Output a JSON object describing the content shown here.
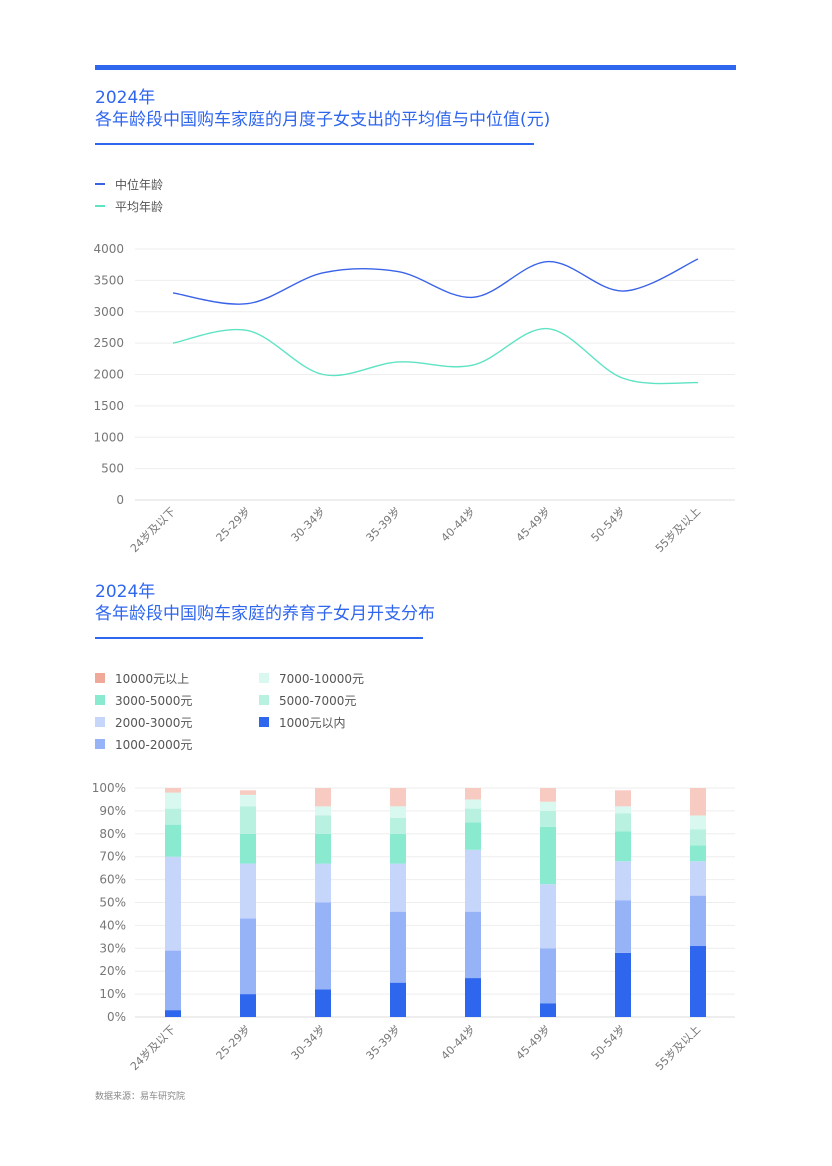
{
  "chart_data": [
    {
      "type": "line",
      "title_year": "2024年",
      "title": "各年龄段中国购车家庭的月度子女支出的平均值与中位值(元)",
      "categories": [
        "24岁及以下",
        "25-29岁",
        "30-34岁",
        "35-39岁",
        "40-44岁",
        "45-49岁",
        "50-54岁",
        "55岁及以上"
      ],
      "ylim": [
        0,
        4000
      ],
      "yticks": [
        "0",
        "500",
        "1000",
        "1500",
        "2000",
        "2500",
        "3000",
        "3500",
        "4000"
      ],
      "grid": true,
      "legend_position": "top-left",
      "series": [
        {
          "name": "中位年龄",
          "color": "#3a63e8",
          "values": [
            3300,
            3130,
            3620,
            3640,
            3230,
            3800,
            3330,
            3840
          ]
        },
        {
          "name": "平均年龄",
          "color": "#5ee3c4",
          "values": [
            2500,
            2700,
            2000,
            2200,
            2150,
            2730,
            1940,
            1870
          ]
        }
      ]
    },
    {
      "type": "bar",
      "stacked": true,
      "title_year": "2024年",
      "title": "各年龄段中国购车家庭的养育子女月开支分布",
      "categories": [
        "24岁及以下",
        "25-29岁",
        "30-34岁",
        "35-39岁",
        "40-44岁",
        "45-49岁",
        "50-54岁",
        "55岁及以上"
      ],
      "ylim": [
        0,
        100
      ],
      "yticks": [
        "0%",
        "10%",
        "20%",
        "30%",
        "40%",
        "50%",
        "60%",
        "70%",
        "80%",
        "90%",
        "100%"
      ],
      "grid": true,
      "legend_position": "top-left",
      "legend_order": [
        6,
        3,
        2,
        1,
        5,
        4,
        0
      ],
      "series": [
        {
          "name": "1000元以内",
          "color": "#2f66ee",
          "values": [
            3,
            10,
            12,
            15,
            17,
            6,
            28,
            31
          ]
        },
        {
          "name": "1000-2000元",
          "color": "#96b3f8",
          "values": [
            26,
            33,
            38,
            31,
            29,
            24,
            23,
            22
          ]
        },
        {
          "name": "2000-3000元",
          "color": "#c6d6fb",
          "values": [
            41,
            24,
            17,
            21,
            27,
            28,
            17,
            15
          ]
        },
        {
          "name": "3000-5000元",
          "color": "#8aeacf",
          "values": [
            14,
            13,
            13,
            13,
            12,
            25,
            13,
            7
          ]
        },
        {
          "name": "5000-7000元",
          "color": "#b9f1e1",
          "values": [
            7,
            12,
            8,
            7,
            6,
            7,
            8,
            7
          ]
        },
        {
          "name": "7000-10000元",
          "color": "#d9f8ef",
          "values": [
            7,
            5,
            4,
            5,
            4,
            4,
            3,
            6
          ]
        },
        {
          "name": "10000元以上",
          "color": "#f7cbc1",
          "legend_color": "#f0a898",
          "values": [
            2,
            2,
            8,
            8,
            5,
            6,
            7,
            12
          ]
        }
      ]
    }
  ],
  "source": "数据来源：易车研究院"
}
